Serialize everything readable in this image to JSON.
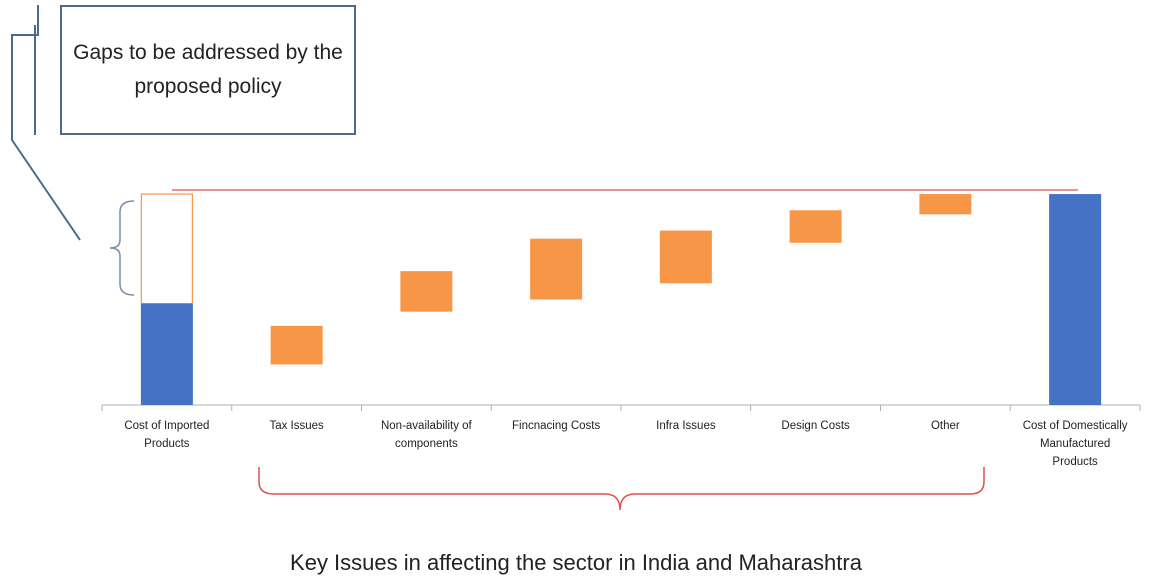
{
  "chart_data": {
    "type": "waterfall",
    "categories": [
      "Cost of Imported Products",
      "Tax Issues",
      "Non-availability of components",
      "Fincnacing Costs",
      "Infra Issues",
      "Design Costs",
      "Other",
      "Cost of Domestically Manufactured Products"
    ],
    "bars": [
      {
        "kind": "total",
        "start": 0,
        "end": 50
      },
      {
        "kind": "floating",
        "start": 20,
        "end": 39
      },
      {
        "kind": "floating",
        "start": 46,
        "end": 66
      },
      {
        "kind": "floating",
        "start": 52,
        "end": 82
      },
      {
        "kind": "floating",
        "start": 60,
        "end": 86
      },
      {
        "kind": "floating",
        "start": 80,
        "end": 96
      },
      {
        "kind": "floating",
        "start": 94,
        "end": 104
      },
      {
        "kind": "total",
        "start": 0,
        "end": 104
      }
    ],
    "gap": {
      "category": "Cost of Imported Products",
      "start": 50,
      "end": 104
    },
    "reference_line_value": 106,
    "ylim": [
      0,
      106
    ],
    "grid": false,
    "legend": "none",
    "title": "",
    "xlabel": "Key Issues in affecting the sector in India and Maharashtra",
    "ylabel": ""
  },
  "callout": {
    "text": "Gaps to be addressed by the proposed policy"
  },
  "caption": "Key Issues in affecting the sector in India and Maharashtra",
  "colors": {
    "total_bar": "#4472c4",
    "issue_bar": "#f79646",
    "gap_outline": "#f79646",
    "reference_line": "#e05050",
    "brace": "#e05050",
    "callout_border": "#4a6a8c",
    "axis": "#b0b0b0"
  }
}
